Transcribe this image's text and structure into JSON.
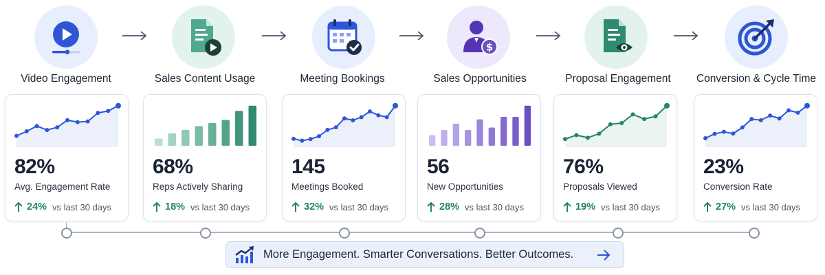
{
  "colors": {
    "blue": "#2f56d6",
    "teal": "#23865f",
    "purple": "#6d4fc4",
    "positive": "#23865f",
    "timeline": "#8792a6"
  },
  "stages": [
    {
      "title": "Video Engagement",
      "icon": "video-play-icon",
      "metric_value": "82%",
      "metric_label": "Avg. Engagement Rate",
      "change": "24%",
      "change_suffix": "vs last 30 days"
    },
    {
      "title": "Sales Content Usage",
      "icon": "document-play-icon",
      "metric_value": "68%",
      "metric_label": "Reps Actively Sharing",
      "change": "18%",
      "change_suffix": "vs last 30 days"
    },
    {
      "title": "Meeting Bookings",
      "icon": "calendar-check-icon",
      "metric_value": "145",
      "metric_label": "Meetings Booked",
      "change": "32%",
      "change_suffix": "vs last 30 days"
    },
    {
      "title": "Sales Opportunities",
      "icon": "person-dollar-icon",
      "metric_value": "56",
      "metric_label": "New Opportunities",
      "change": "28%",
      "change_suffix": "vs last 30 days"
    },
    {
      "title": "Proposal Engagement",
      "icon": "document-eye-icon",
      "metric_value": "76%",
      "metric_label": "Proposals Viewed",
      "change": "19%",
      "change_suffix": "vs last 30 days"
    },
    {
      "title": "Conversion & Cycle Time",
      "icon": "target-icon",
      "metric_value": "23%",
      "metric_label": "Conversion Rate",
      "change": "27%",
      "change_suffix": "vs last 30 days"
    }
  ],
  "banner": {
    "text": "More Engagement. Smarter Conversations. Better Outcomes.",
    "icon": "trend-up-chart-icon"
  },
  "chart_data": [
    {
      "type": "area",
      "series_color": "blue",
      "values": [
        3,
        4.4,
        6,
        4.8,
        5.6,
        7.8,
        7.2,
        7.4,
        10,
        10.6,
        12.2
      ]
    },
    {
      "type": "bar",
      "series_color": "teal",
      "values": [
        2.1,
        3.6,
        4.6,
        5.7,
        6.6,
        7.5,
        10.1,
        11.6
      ]
    },
    {
      "type": "area",
      "series_color": "blue",
      "values": [
        2.2,
        1.6,
        2.1,
        3,
        5,
        5.8,
        8.6,
        8,
        9,
        10.8,
        9.6,
        9,
        12.6
      ]
    },
    {
      "type": "bar",
      "series_color": "purple",
      "values": [
        4.2,
        6.2,
        8.7,
        6.2,
        10.4,
        7.2,
        11.4,
        11.4,
        15.8
      ]
    },
    {
      "type": "area",
      "series_color": "teal",
      "values": [
        2,
        3.2,
        2.4,
        3.6,
        6.4,
        6.8,
        9.4,
        8,
        8.8,
        12
      ]
    },
    {
      "type": "area",
      "series_color": "blue",
      "values": [
        2.6,
        4.1,
        4.8,
        4.2,
        6.3,
        9.2,
        8.8,
        10.4,
        9.4,
        12.2,
        11.4,
        13.8
      ]
    }
  ]
}
